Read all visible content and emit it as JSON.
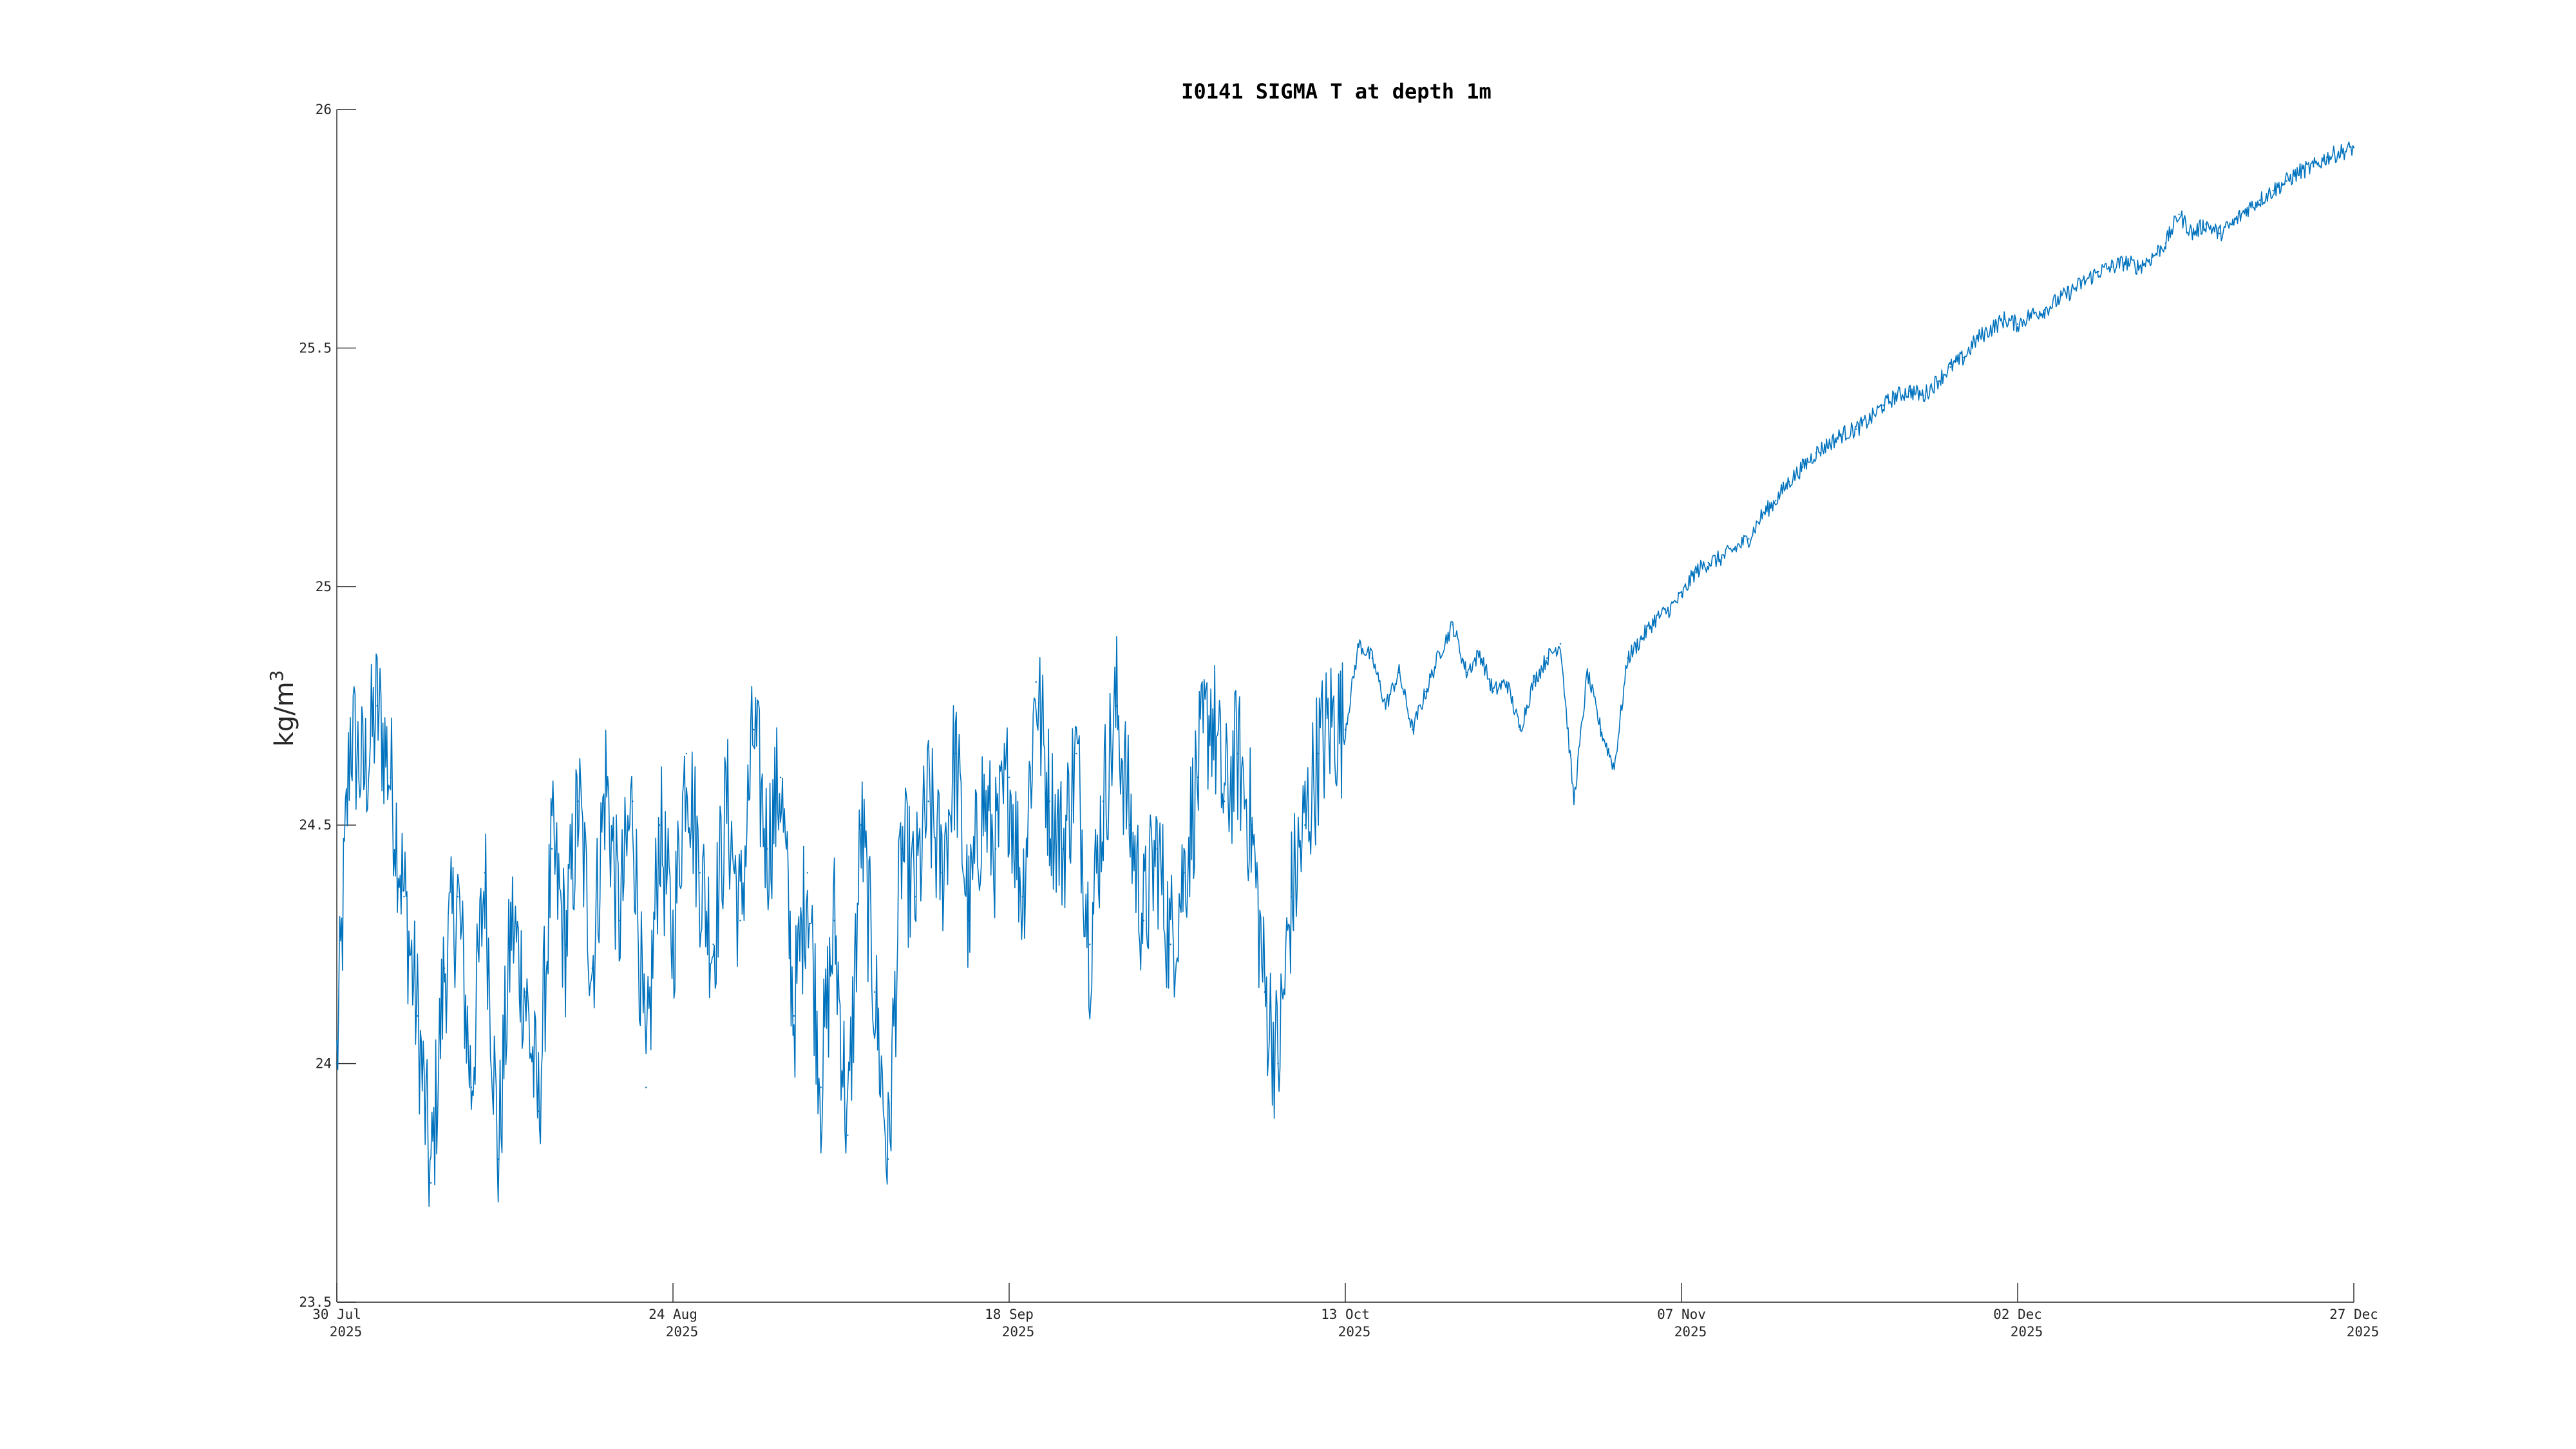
{
  "chart_data": {
    "type": "line",
    "title": "I0141 SIGMA T at depth 1m",
    "xlabel": "",
    "ylabel": "kg/m",
    "ylabel_superscript": "3",
    "xlim": [
      "2025-07-30",
      "2025-12-27"
    ],
    "ylim": [
      23.5,
      26
    ],
    "grid": false,
    "legend": "none",
    "x_ticks": [
      {
        "date": "2025-07-30",
        "line1": "30 Jul",
        "line2": "2025"
      },
      {
        "date": "2025-08-24",
        "line1": "24 Aug",
        "line2": "2025"
      },
      {
        "date": "2025-09-18",
        "line1": "18 Sep",
        "line2": "2025"
      },
      {
        "date": "2025-10-13",
        "line1": "13 Oct",
        "line2": "2025"
      },
      {
        "date": "2025-11-07",
        "line1": "07 Nov",
        "line2": "2025"
      },
      {
        "date": "2025-12-02",
        "line1": "02 Dec",
        "line2": "2025"
      },
      {
        "date": "2025-12-27",
        "line1": "27 Dec",
        "line2": "2025"
      }
    ],
    "y_ticks": [
      {
        "value": 23.5,
        "label": "23.5"
      },
      {
        "value": 24,
        "label": "24"
      },
      {
        "value": 24.5,
        "label": "24.5"
      },
      {
        "value": 25,
        "label": "25"
      },
      {
        "value": 25.5,
        "label": "25.5"
      },
      {
        "value": 26,
        "label": "26"
      }
    ],
    "series": [
      {
        "color": "#0072BD",
        "points": [
          [
            "2025-07-30",
            24.0
          ],
          [
            "2025-07-31",
            24.7
          ],
          [
            "2025-08-01",
            24.6
          ],
          [
            "2025-08-02",
            24.75
          ],
          [
            "2025-08-03",
            24.6
          ],
          [
            "2025-08-04",
            24.35
          ],
          [
            "2025-08-05",
            24.1
          ],
          [
            "2025-08-06",
            23.75
          ],
          [
            "2025-08-07",
            24.2
          ],
          [
            "2025-08-08",
            24.35
          ],
          [
            "2025-08-09",
            23.95
          ],
          [
            "2025-08-10",
            24.4
          ],
          [
            "2025-08-11",
            23.8
          ],
          [
            "2025-08-12",
            24.3
          ],
          [
            "2025-08-13",
            24.15
          ],
          [
            "2025-08-14",
            23.9
          ],
          [
            "2025-08-15",
            24.45
          ],
          [
            "2025-08-16",
            24.25
          ],
          [
            "2025-08-17",
            24.55
          ],
          [
            "2025-08-18",
            24.2
          ],
          [
            "2025-08-19",
            24.6
          ],
          [
            "2025-08-20",
            24.3
          ],
          [
            "2025-08-21",
            24.55
          ],
          [
            "2025-08-22",
            23.95
          ],
          [
            "2025-08-23",
            24.5
          ],
          [
            "2025-08-24",
            24.25
          ],
          [
            "2025-08-25",
            24.65
          ],
          [
            "2025-08-26",
            24.4
          ],
          [
            "2025-08-27",
            24.25
          ],
          [
            "2025-08-28",
            24.55
          ],
          [
            "2025-08-29",
            24.3
          ],
          [
            "2025-08-30",
            24.7
          ],
          [
            "2025-08-31",
            24.45
          ],
          [
            "2025-09-01",
            24.6
          ],
          [
            "2025-09-02",
            24.1
          ],
          [
            "2025-09-03",
            24.4
          ],
          [
            "2025-09-04",
            23.95
          ],
          [
            "2025-09-05",
            24.3
          ],
          [
            "2025-09-06",
            23.85
          ],
          [
            "2025-09-07",
            24.5
          ],
          [
            "2025-09-08",
            24.15
          ],
          [
            "2025-09-09",
            23.8
          ],
          [
            "2025-09-10",
            24.45
          ],
          [
            "2025-09-11",
            24.35
          ],
          [
            "2025-09-12",
            24.55
          ],
          [
            "2025-09-13",
            24.4
          ],
          [
            "2025-09-14",
            24.65
          ],
          [
            "2025-09-15",
            24.3
          ],
          [
            "2025-09-16",
            24.55
          ],
          [
            "2025-09-17",
            24.45
          ],
          [
            "2025-09-18",
            24.6
          ],
          [
            "2025-09-19",
            24.35
          ],
          [
            "2025-09-20",
            24.8
          ],
          [
            "2025-09-21",
            24.55
          ],
          [
            "2025-09-22",
            24.45
          ],
          [
            "2025-09-23",
            24.65
          ],
          [
            "2025-09-24",
            24.25
          ],
          [
            "2025-09-25",
            24.55
          ],
          [
            "2025-09-26",
            24.75
          ],
          [
            "2025-09-27",
            24.5
          ],
          [
            "2025-09-28",
            24.3
          ],
          [
            "2025-09-29",
            24.45
          ],
          [
            "2025-09-30",
            24.25
          ],
          [
            "2025-10-01",
            24.4
          ],
          [
            "2025-10-02",
            24.6
          ],
          [
            "2025-10-03",
            24.75
          ],
          [
            "2025-10-04",
            24.55
          ],
          [
            "2025-10-05",
            24.65
          ],
          [
            "2025-10-06",
            24.5
          ],
          [
            "2025-10-07",
            24.15
          ],
          [
            "2025-10-08",
            24.0
          ],
          [
            "2025-10-09",
            24.35
          ],
          [
            "2025-10-10",
            24.5
          ],
          [
            "2025-10-11",
            24.65
          ],
          [
            "2025-10-12",
            24.72
          ],
          [
            "2025-10-13",
            24.7
          ],
          [
            "2025-10-14",
            24.88
          ],
          [
            "2025-10-15",
            24.85
          ],
          [
            "2025-10-16",
            24.75
          ],
          [
            "2025-10-17",
            24.82
          ],
          [
            "2025-10-18",
            24.7
          ],
          [
            "2025-10-19",
            24.78
          ],
          [
            "2025-10-20",
            24.86
          ],
          [
            "2025-10-21",
            24.92
          ],
          [
            "2025-10-22",
            24.82
          ],
          [
            "2025-10-23",
            24.86
          ],
          [
            "2025-10-24",
            24.78
          ],
          [
            "2025-10-25",
            24.8
          ],
          [
            "2025-10-26",
            24.7
          ],
          [
            "2025-10-27",
            24.8
          ],
          [
            "2025-10-28",
            24.85
          ],
          [
            "2025-10-29",
            24.88
          ],
          [
            "2025-10-30",
            24.55
          ],
          [
            "2025-10-31",
            24.82
          ],
          [
            "2025-11-01",
            24.7
          ],
          [
            "2025-11-02",
            24.62
          ],
          [
            "2025-11-03",
            24.85
          ],
          [
            "2025-11-04",
            24.89
          ],
          [
            "2025-11-05",
            24.93
          ],
          [
            "2025-11-06",
            24.95
          ],
          [
            "2025-11-07",
            24.98
          ],
          [
            "2025-11-08",
            25.03
          ],
          [
            "2025-11-09",
            25.05
          ],
          [
            "2025-11-10",
            25.06
          ],
          [
            "2025-11-11",
            25.08
          ],
          [
            "2025-11-12",
            25.1
          ],
          [
            "2025-11-13",
            25.15
          ],
          [
            "2025-11-14",
            25.18
          ],
          [
            "2025-11-15",
            25.22
          ],
          [
            "2025-11-16",
            25.25
          ],
          [
            "2025-11-17",
            25.28
          ],
          [
            "2025-11-18",
            25.3
          ],
          [
            "2025-11-19",
            25.32
          ],
          [
            "2025-11-20",
            25.33
          ],
          [
            "2025-11-21",
            25.35
          ],
          [
            "2025-11-22",
            25.38
          ],
          [
            "2025-11-23",
            25.4
          ],
          [
            "2025-11-24",
            25.41
          ],
          [
            "2025-11-25",
            25.4
          ],
          [
            "2025-11-26",
            25.43
          ],
          [
            "2025-11-27",
            25.46
          ],
          [
            "2025-11-28",
            25.48
          ],
          [
            "2025-11-29",
            25.52
          ],
          [
            "2025-11-30",
            25.54
          ],
          [
            "2025-12-01",
            25.56
          ],
          [
            "2025-12-02",
            25.55
          ],
          [
            "2025-12-03",
            25.57
          ],
          [
            "2025-12-04",
            25.58
          ],
          [
            "2025-12-05",
            25.6
          ],
          [
            "2025-12-06",
            25.62
          ],
          [
            "2025-12-07",
            25.64
          ],
          [
            "2025-12-08",
            25.66
          ],
          [
            "2025-12-09",
            25.67
          ],
          [
            "2025-12-10",
            25.68
          ],
          [
            "2025-12-11",
            25.67
          ],
          [
            "2025-12-12",
            25.69
          ],
          [
            "2025-12-13",
            25.72
          ],
          [
            "2025-12-14",
            25.78
          ],
          [
            "2025-12-15",
            25.74
          ],
          [
            "2025-12-16",
            25.76
          ],
          [
            "2025-12-17",
            25.74
          ],
          [
            "2025-12-18",
            25.76
          ],
          [
            "2025-12-19",
            25.79
          ],
          [
            "2025-12-20",
            25.81
          ],
          [
            "2025-12-21",
            25.83
          ],
          [
            "2025-12-22",
            25.85
          ],
          [
            "2025-12-23",
            25.87
          ],
          [
            "2025-12-24",
            25.88
          ],
          [
            "2025-12-25",
            25.9
          ],
          [
            "2025-12-26",
            25.91
          ],
          [
            "2025-12-27",
            25.92
          ]
        ]
      }
    ]
  }
}
